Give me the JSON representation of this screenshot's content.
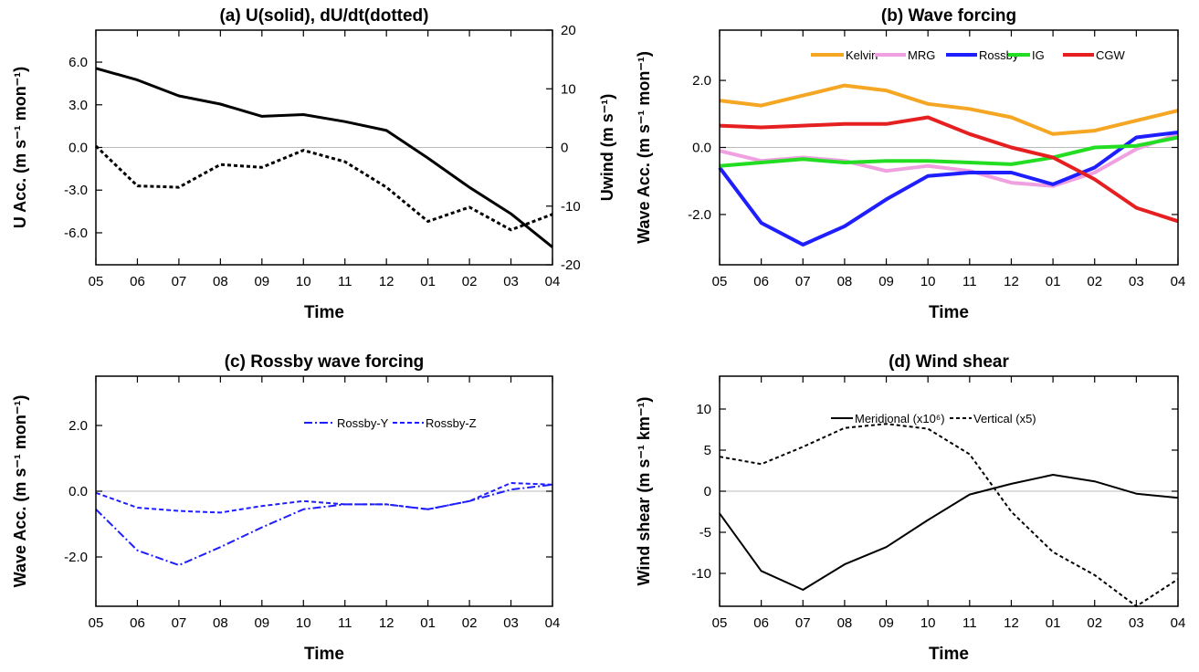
{
  "chart_data": [
    {
      "type": "line",
      "title": "(a) U(solid), dU/dt(dotted)",
      "xlabel": "Time",
      "ylabel": "U Acc. (m s⁻¹ mon⁻¹)",
      "ylabel_right": "Uwind (m s⁻¹)",
      "categories": [
        "05",
        "06",
        "07",
        "08",
        "09",
        "10",
        "11",
        "12",
        "01",
        "02",
        "03",
        "04"
      ],
      "ylim": [
        -8.25,
        8.25
      ],
      "yticks": [
        -6.0,
        -3.0,
        0.0,
        3.0,
        6.0
      ],
      "ytick_labels": [
        "-6.0",
        "-3.0",
        "0.0",
        "3.0",
        "6.0"
      ],
      "ylim_right": [
        -20,
        20
      ],
      "yticks_right": [
        -20,
        -10,
        0,
        10,
        20
      ],
      "ytick_labels_right": [
        "-20",
        "-10",
        "0",
        "10",
        "20"
      ],
      "zero_line": true,
      "series": [
        {
          "values": [
            0.1,
            -2.7,
            -2.8,
            -1.2,
            -1.4,
            -0.2,
            -1.0,
            -2.8,
            -5.2,
            -4.2,
            -5.8,
            -4.7
          ],
          "axis": "left",
          "color": "#000000",
          "dash": "dotted"
        },
        {
          "values": [
            13.5,
            11.5,
            8.8,
            7.4,
            5.3,
            5.6,
            4.4,
            2.9,
            -1.8,
            -6.8,
            -11.3,
            -17.0
          ],
          "axis": "right",
          "color": "#000000",
          "dash": "solid"
        }
      ]
    },
    {
      "type": "line",
      "title": "(b) Wave forcing",
      "xlabel": "Time",
      "ylabel": "Wave Acc. (m s⁻¹ mon⁻¹)",
      "categories": [
        "05",
        "06",
        "07",
        "08",
        "09",
        "10",
        "11",
        "12",
        "01",
        "02",
        "03",
        "04"
      ],
      "ylim": [
        -3.5,
        3.5
      ],
      "yticks": [
        -2.0,
        0.0,
        2.0
      ],
      "ytick_labels": [
        "-2.0",
        "0.0",
        "2.0"
      ],
      "zero_line": true,
      "legend": "top",
      "series": [
        {
          "name": "Kelvin",
          "color": "#F5A623",
          "dash": "solid",
          "values": [
            1.4,
            1.25,
            1.55,
            1.85,
            1.7,
            1.3,
            1.15,
            0.9,
            0.4,
            0.5,
            0.8,
            1.1
          ]
        },
        {
          "name": "MRG",
          "color": "#F0A0E0",
          "dash": "solid",
          "values": [
            -0.1,
            -0.4,
            -0.3,
            -0.4,
            -0.7,
            -0.55,
            -0.7,
            -1.05,
            -1.15,
            -0.75,
            -0.05,
            0.4
          ]
        },
        {
          "name": "Rossby",
          "color": "#1E1EFF",
          "dash": "solid",
          "values": [
            -0.6,
            -2.25,
            -2.9,
            -2.35,
            -1.55,
            -0.85,
            -0.75,
            -0.75,
            -1.1,
            -0.6,
            0.3,
            0.45
          ]
        },
        {
          "name": "IG",
          "color": "#22DD22",
          "dash": "solid",
          "values": [
            -0.55,
            -0.45,
            -0.35,
            -0.45,
            -0.4,
            -0.4,
            -0.45,
            -0.5,
            -0.3,
            0.0,
            0.05,
            0.3
          ]
        },
        {
          "name": "CGW",
          "color": "#E62020",
          "dash": "solid",
          "values": [
            0.65,
            0.6,
            0.65,
            0.7,
            0.7,
            0.9,
            0.4,
            0.0,
            -0.3,
            -0.95,
            -1.8,
            -2.2
          ]
        }
      ]
    },
    {
      "type": "line",
      "title": "(c) Rossby wave forcing",
      "xlabel": "Time",
      "ylabel": "Wave Acc. (m s⁻¹ mon⁻¹)",
      "categories": [
        "05",
        "06",
        "07",
        "08",
        "09",
        "10",
        "11",
        "12",
        "01",
        "02",
        "03",
        "04"
      ],
      "ylim": [
        -3.5,
        3.5
      ],
      "yticks": [
        -2.0,
        0.0,
        2.0
      ],
      "ytick_labels": [
        "-2.0",
        "0.0",
        "2.0"
      ],
      "zero_line": true,
      "legend": "top",
      "series": [
        {
          "name": "Rossby-Y",
          "color": "#1E1EFF",
          "dash": "dashdot",
          "values": [
            -0.55,
            -1.8,
            -2.25,
            -1.7,
            -1.1,
            -0.55,
            -0.4,
            -0.4,
            -0.55,
            -0.3,
            0.05,
            0.2
          ]
        },
        {
          "name": "Rossby-Z",
          "color": "#1E1EFF",
          "dash": "dashed",
          "values": [
            -0.05,
            -0.5,
            -0.6,
            -0.65,
            -0.45,
            -0.3,
            -0.4,
            -0.4,
            -0.55,
            -0.3,
            0.25,
            0.2
          ]
        }
      ]
    },
    {
      "type": "line",
      "title": "(d) Wind shear",
      "xlabel": "Time",
      "ylabel": "Wind shear (m s⁻¹ km⁻¹)",
      "categories": [
        "05",
        "06",
        "07",
        "08",
        "09",
        "10",
        "11",
        "12",
        "01",
        "02",
        "03",
        "04"
      ],
      "ylim": [
        -14,
        14
      ],
      "yticks": [
        -10,
        -5,
        0,
        5,
        10
      ],
      "ytick_labels": [
        "-10",
        "-5",
        "0",
        "5",
        "10"
      ],
      "zero_line": true,
      "legend": "top",
      "series": [
        {
          "name": "Meridional (x10⁶)",
          "color": "#000000",
          "dash": "solid",
          "values": [
            -2.7,
            -9.7,
            -12.0,
            -8.9,
            -6.8,
            -3.5,
            -0.4,
            0.9,
            2.0,
            1.2,
            -0.3,
            -0.8
          ]
        },
        {
          "name": "Vertical (x5)",
          "color": "#000000",
          "dash": "dotted",
          "values": [
            4.2,
            3.3,
            5.4,
            7.7,
            8.2,
            7.6,
            4.5,
            -2.5,
            -7.4,
            -10.2,
            -14.0,
            -10.7
          ]
        }
      ]
    }
  ]
}
